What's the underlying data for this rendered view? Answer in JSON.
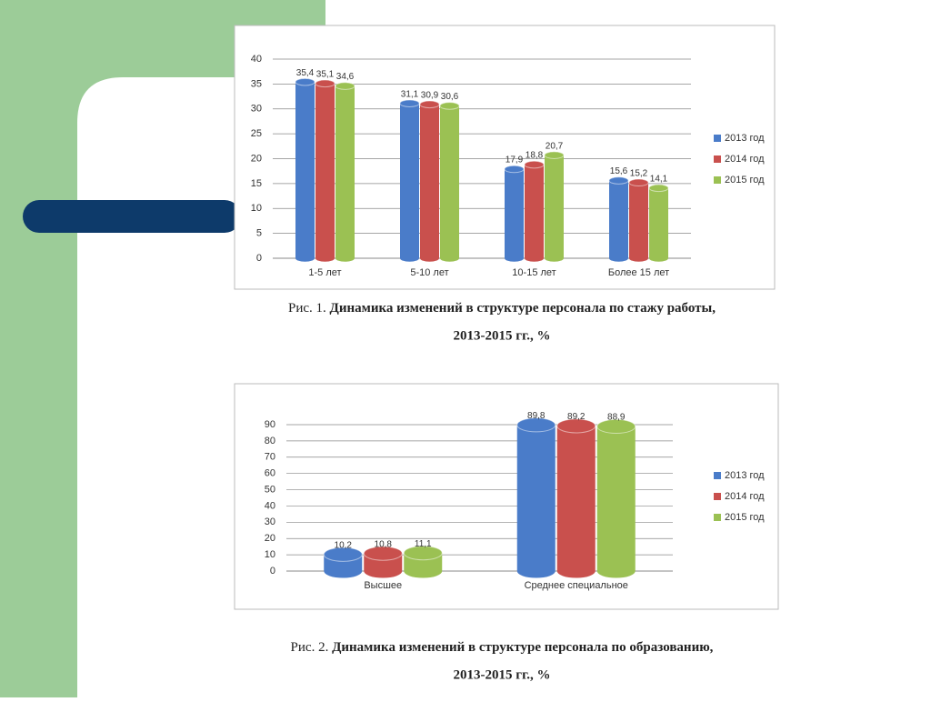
{
  "chart_data": [
    {
      "type": "bar",
      "categories": [
        "1-5 лет",
        "5-10 лет",
        "10-15 лет",
        "Более 15 лет"
      ],
      "series": [
        {
          "name": "2013 год",
          "color": "#4a7cc9",
          "values": [
            35.4,
            31.1,
            17.9,
            15.6
          ],
          "value_labels": [
            "35,4",
            "31,1",
            "17,9",
            "15,6"
          ]
        },
        {
          "name": "2014 год",
          "color": "#c9504d",
          "values": [
            35.1,
            30.9,
            18.8,
            15.2
          ],
          "value_labels": [
            "35,1",
            "30,9",
            "18,8",
            "15,2"
          ]
        },
        {
          "name": "2015 год",
          "color": "#9bc153",
          "values": [
            34.6,
            30.6,
            20.7,
            14.1
          ],
          "value_labels": [
            "34,6",
            "30,6",
            "20,7",
            "14,1"
          ]
        }
      ],
      "ylim": [
        0,
        40
      ],
      "yticks": [
        0,
        5,
        10,
        15,
        20,
        25,
        30,
        35,
        40
      ],
      "grid": true,
      "legend": "right",
      "caption_label": "Рис. 1.",
      "caption": [
        "Динамика изменений в структуре персонала по стажу работы,",
        "2013-2015 гг., %"
      ]
    },
    {
      "type": "bar",
      "categories": [
        "Высшее",
        "Среднее специальное"
      ],
      "series": [
        {
          "name": "2013 год",
          "color": "#4a7cc9",
          "values": [
            10.2,
            89.8
          ],
          "value_labels": [
            "10,2",
            "89,8"
          ]
        },
        {
          "name": "2014 год",
          "color": "#c9504d",
          "values": [
            10.8,
            89.2
          ],
          "value_labels": [
            "10,8",
            "89,2"
          ]
        },
        {
          "name": "2015 год",
          "color": "#9bc153",
          "values": [
            11.1,
            88.9
          ],
          "value_labels": [
            "11,1",
            "88,9"
          ]
        }
      ],
      "ylim": [
        0,
        90
      ],
      "yticks": [
        0,
        10,
        20,
        30,
        40,
        50,
        60,
        70,
        80,
        90
      ],
      "grid": true,
      "legend": "right",
      "caption_label": "Рис. 2.",
      "caption": [
        "Динамика изменений в структуре персонала по образованию,",
        "2013-2015 гг., %"
      ]
    }
  ]
}
